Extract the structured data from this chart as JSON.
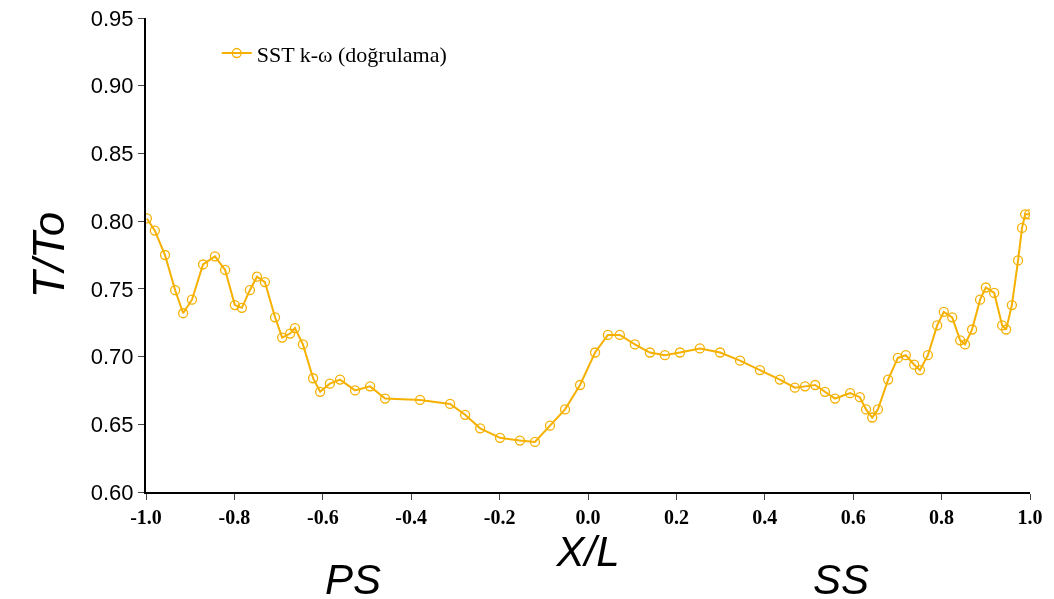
{
  "chart_data": {
    "type": "line",
    "xlabel": "X/L",
    "ylabel": "T/To",
    "annotations": [
      "PS",
      "SS"
    ],
    "x": [
      -0.998,
      -0.98,
      -0.957,
      -0.934,
      -0.916,
      -0.896,
      -0.871,
      -0.844,
      -0.821,
      -0.799,
      -0.783,
      -0.765,
      -0.749,
      -0.731,
      -0.708,
      -0.692,
      -0.674,
      -0.663,
      -0.645,
      -0.622,
      -0.606,
      -0.584,
      -0.561,
      -0.527,
      -0.493,
      -0.459,
      -0.38,
      -0.312,
      -0.278,
      -0.244,
      -0.199,
      -0.154,
      -0.12,
      -0.086,
      -0.052,
      -0.018,
      0.016,
      0.045,
      0.072,
      0.106,
      0.14,
      0.174,
      0.208,
      0.253,
      0.299,
      0.344,
      0.389,
      0.434,
      0.468,
      0.491,
      0.514,
      0.536,
      0.559,
      0.593,
      0.615,
      0.629,
      0.643,
      0.656,
      0.679,
      0.701,
      0.719,
      0.738,
      0.751,
      0.769,
      0.79,
      0.805,
      0.824,
      0.842,
      0.853,
      0.869,
      0.887,
      0.9,
      0.919,
      0.937,
      0.946,
      0.959,
      0.973,
      0.982,
      0.989,
      0.998
    ],
    "series": [
      {
        "name": "SST k-ω (doğrulama)",
        "color": "#f5b000",
        "values": [
          0.802,
          0.793,
          0.775,
          0.749,
          0.732,
          0.742,
          0.768,
          0.774,
          0.764,
          0.738,
          0.736,
          0.749,
          0.759,
          0.755,
          0.729,
          0.714,
          0.717,
          0.721,
          0.709,
          0.684,
          0.674,
          0.68,
          0.683,
          0.675,
          0.678,
          0.669,
          0.668,
          0.665,
          0.657,
          0.647,
          0.64,
          0.638,
          0.637,
          0.649,
          0.661,
          0.679,
          0.703,
          0.716,
          0.716,
          0.709,
          0.703,
          0.701,
          0.703,
          0.706,
          0.703,
          0.697,
          0.69,
          0.683,
          0.677,
          0.678,
          0.679,
          0.674,
          0.669,
          0.673,
          0.67,
          0.661,
          0.655,
          0.661,
          0.683,
          0.699,
          0.701,
          0.694,
          0.69,
          0.701,
          0.723,
          0.733,
          0.729,
          0.712,
          0.709,
          0.72,
          0.742,
          0.751,
          0.747,
          0.723,
          0.72,
          0.738,
          0.771,
          0.795,
          0.805,
          0.805
        ]
      }
    ],
    "xlim": [
      -1.0,
      1.0
    ],
    "xticks": [
      {
        "value": -1,
        "label": "-1.0"
      },
      -0.8,
      -0.6,
      -0.4,
      -0.2,
      {
        "value": 0,
        "label": "0.0"
      },
      0.2,
      0.4,
      0.6,
      0.8,
      {
        "value": 1,
        "label": "1.0"
      }
    ],
    "ylim": [
      0.6,
      0.95
    ],
    "yticks": [
      {
        "value": 0.6,
        "label": "0.60"
      },
      0.65,
      {
        "value": 0.7,
        "label": "0.70"
      },
      0.75,
      {
        "value": 0.8,
        "label": "0.80"
      },
      0.85,
      {
        "value": 0.9,
        "label": "0.90"
      },
      0.95
    ],
    "grid": false,
    "legend": "top left",
    "marker": "circle",
    "line_style": "solid"
  }
}
